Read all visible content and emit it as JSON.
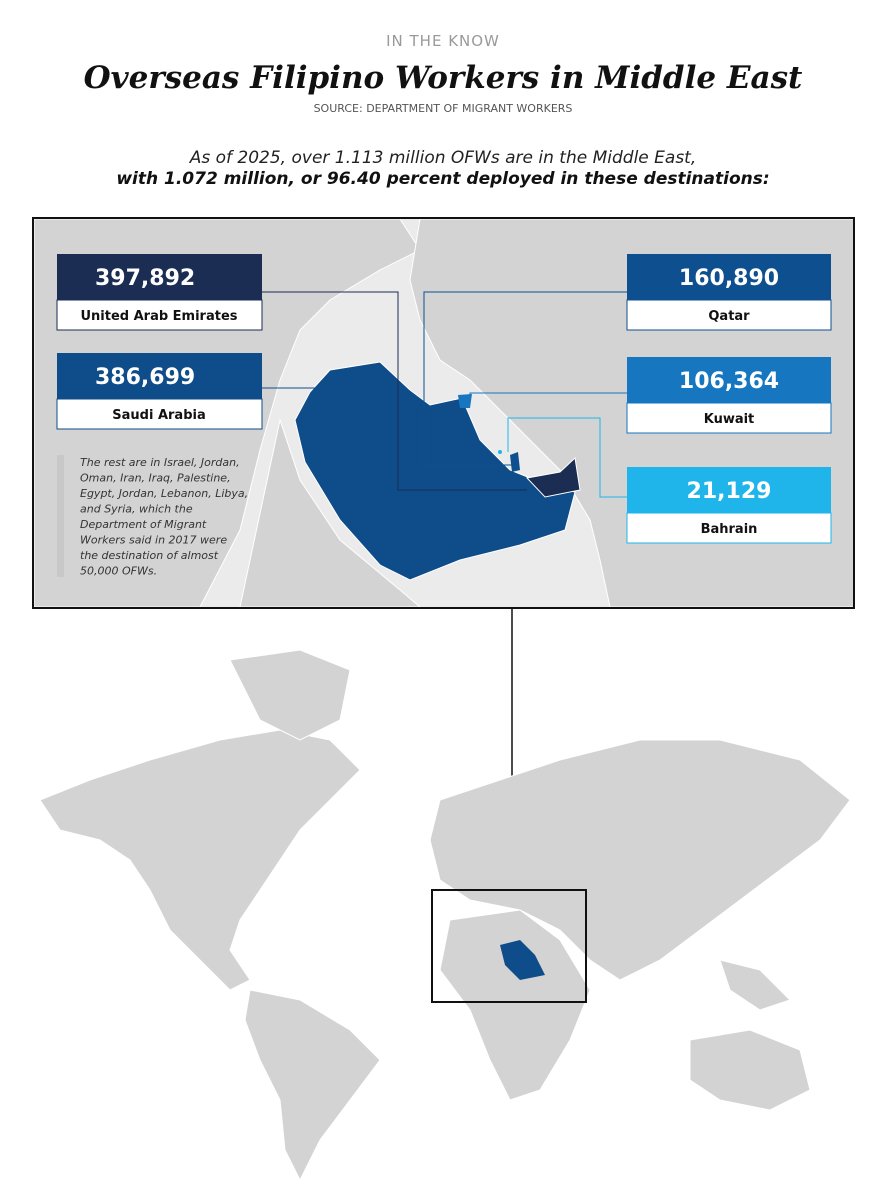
{
  "header": {
    "kicker": "IN THE KNOW",
    "title": "Overseas Filipino Workers in Middle East",
    "source": "SOURCE: DEPARTMENT OF MIGRANT WORKERS"
  },
  "intro": {
    "line1": "As of 2025, over 1.113 million OFWs are in the Middle East,",
    "line2": "with 1.072 million, or 96.40 percent deployed in these destinations:"
  },
  "destinations": [
    {
      "value": "397,892",
      "country": "United Arab Emirates"
    },
    {
      "value": "386,699",
      "country": "Saudi Arabia"
    },
    {
      "value": "160,890",
      "country": "Qatar"
    },
    {
      "value": "106,364",
      "country": "Kuwait"
    },
    {
      "value": "21,129",
      "country": "Bahrain"
    }
  ],
  "note": [
    "The rest are in Israel, Jordan,",
    "Oman, Iran, Iraq, Palestine,",
    "Egypt, Jordan, Lebanon, Libya,",
    "and Syria, which the",
    "Department of Migrant",
    "Workers said in 2017 were",
    "the destination of almost",
    "50,000 OFWs."
  ]
}
